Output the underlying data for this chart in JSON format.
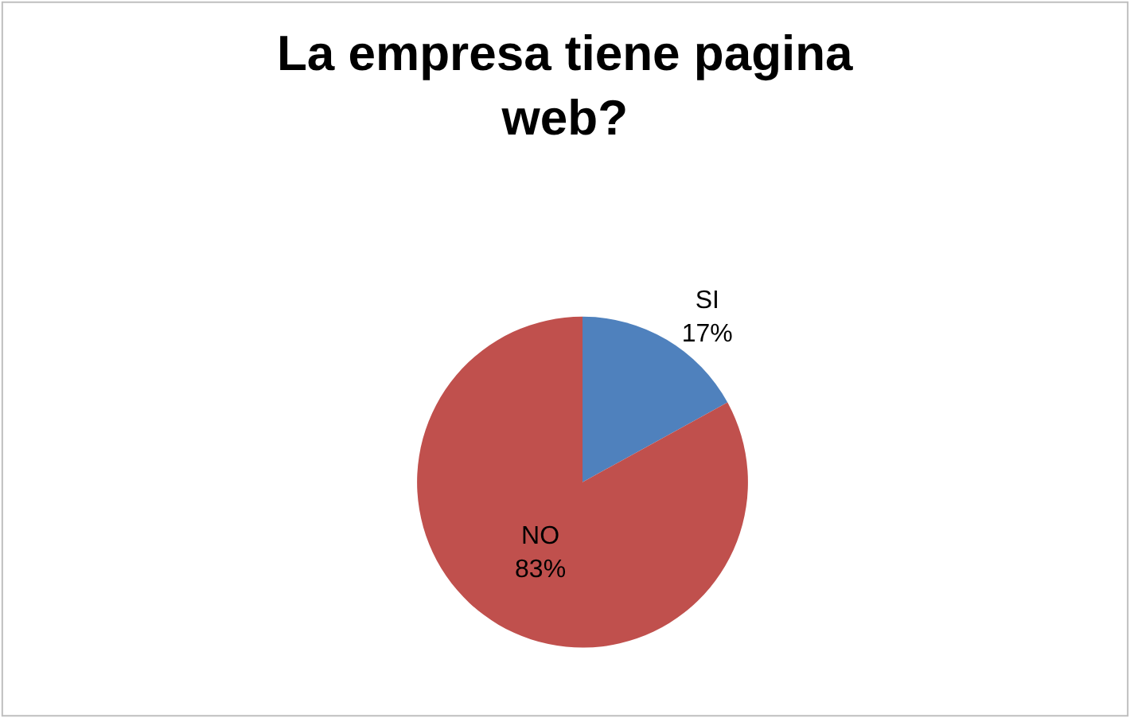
{
  "chart_data": {
    "type": "pie",
    "title": "La empresa tiene pagina web?",
    "categories": [
      "SI",
      "NO"
    ],
    "values": [
      17,
      83
    ],
    "colors": [
      "#4f81bd",
      "#c0504d"
    ],
    "value_labels": [
      "17%",
      "83%"
    ],
    "legend": false
  }
}
